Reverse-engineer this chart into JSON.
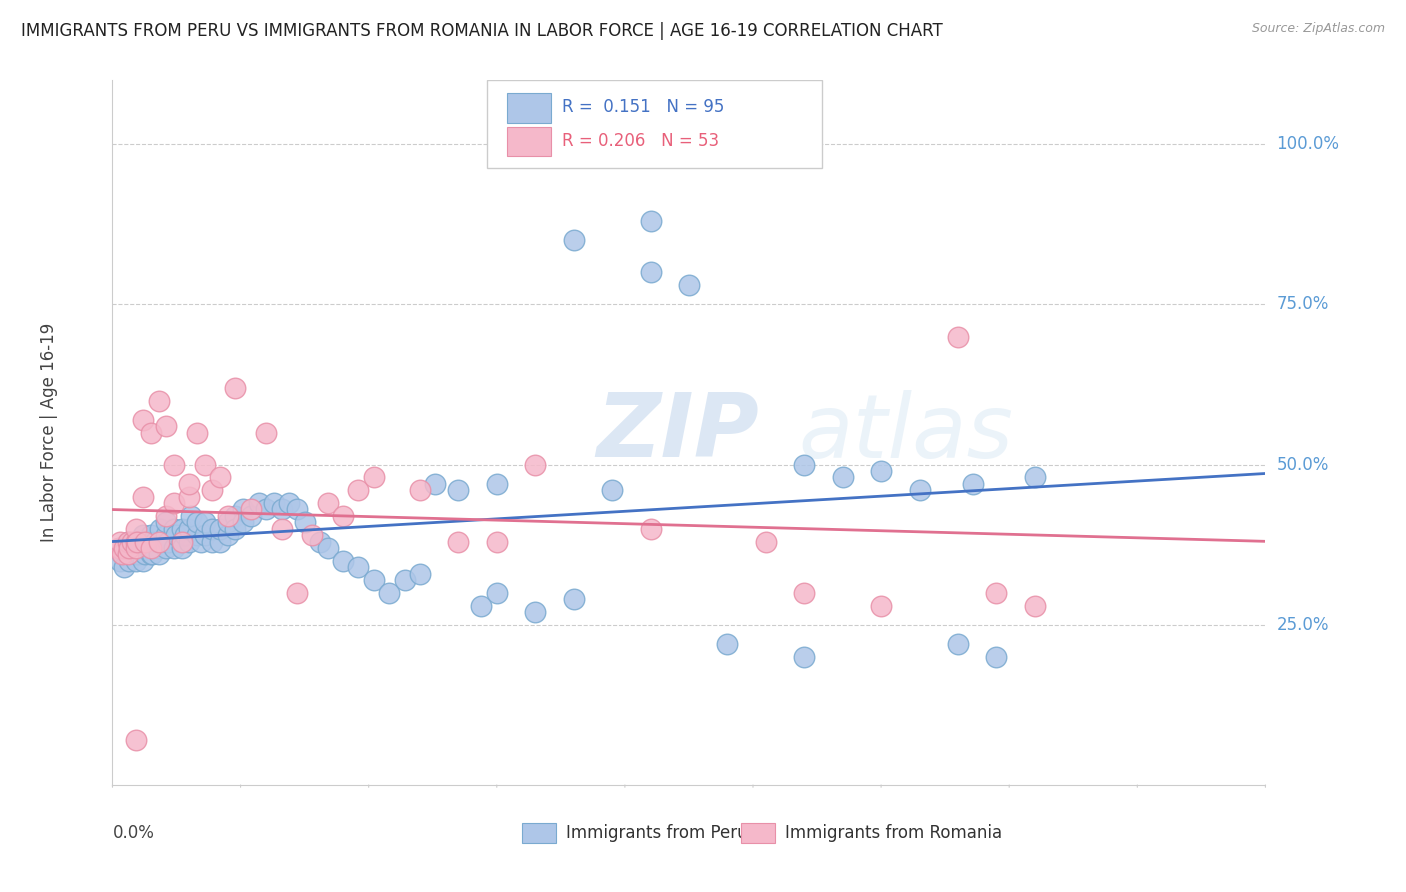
{
  "title": "IMMIGRANTS FROM PERU VS IMMIGRANTS FROM ROMANIA IN LABOR FORCE | AGE 16-19 CORRELATION CHART",
  "source": "Source: ZipAtlas.com",
  "ylabel": "In Labor Force | Age 16-19",
  "xlim": [
    0.0,
    0.15
  ],
  "ylim": [
    0.0,
    1.1
  ],
  "peru_color": "#aec6e8",
  "peru_edge_color": "#7aaad0",
  "romania_color": "#f5b8ca",
  "romania_edge_color": "#e890a8",
  "peru_line_color": "#4472c4",
  "romania_line_color": "#e07090",
  "legend_peru_label_R": "R =  0.151",
  "legend_peru_label_N": "N = 95",
  "legend_romania_label_R": "R = 0.206",
  "legend_romania_label_N": "N = 53",
  "legend_peru_bottom_label": "Immigrants from Peru",
  "legend_romania_bottom_label": "Immigrants from Romania",
  "watermark_zip": "ZIP",
  "watermark_atlas": "atlas",
  "grid_color": "#cccccc",
  "background_color": "#ffffff",
  "title_color": "#222222",
  "ytick_color": "#5b9bd5",
  "xtick_color": "#444444",
  "ylabel_color": "#444444",
  "peru_x": [
    0.0008,
    0.001,
    0.0012,
    0.0015,
    0.0018,
    0.002,
    0.002,
    0.0022,
    0.0025,
    0.003,
    0.003,
    0.003,
    0.0032,
    0.0035,
    0.004,
    0.004,
    0.004,
    0.0042,
    0.0045,
    0.005,
    0.005,
    0.005,
    0.0052,
    0.0055,
    0.006,
    0.006,
    0.006,
    0.0062,
    0.007,
    0.007,
    0.007,
    0.0072,
    0.008,
    0.008,
    0.0082,
    0.009,
    0.009,
    0.009,
    0.0095,
    0.01,
    0.01,
    0.0102,
    0.011,
    0.011,
    0.0115,
    0.012,
    0.012,
    0.013,
    0.013,
    0.014,
    0.014,
    0.015,
    0.015,
    0.016,
    0.016,
    0.017,
    0.017,
    0.018,
    0.019,
    0.02,
    0.021,
    0.022,
    0.023,
    0.024,
    0.025,
    0.027,
    0.028,
    0.03,
    0.032,
    0.034,
    0.036,
    0.038,
    0.04,
    0.042,
    0.045,
    0.048,
    0.05,
    0.055,
    0.06,
    0.065,
    0.07,
    0.075,
    0.08,
    0.05,
    0.06,
    0.07,
    0.09,
    0.09,
    0.095,
    0.1,
    0.105,
    0.11,
    0.112,
    0.115,
    0.12
  ],
  "peru_y": [
    0.37,
    0.35,
    0.36,
    0.34,
    0.37,
    0.36,
    0.38,
    0.35,
    0.37,
    0.35,
    0.36,
    0.38,
    0.37,
    0.36,
    0.35,
    0.37,
    0.39,
    0.36,
    0.38,
    0.36,
    0.37,
    0.39,
    0.36,
    0.38,
    0.37,
    0.36,
    0.38,
    0.4,
    0.37,
    0.39,
    0.41,
    0.38,
    0.4,
    0.37,
    0.39,
    0.38,
    0.4,
    0.37,
    0.39,
    0.38,
    0.4,
    0.42,
    0.39,
    0.41,
    0.38,
    0.39,
    0.41,
    0.38,
    0.4,
    0.38,
    0.4,
    0.39,
    0.41,
    0.42,
    0.4,
    0.43,
    0.41,
    0.42,
    0.44,
    0.43,
    0.44,
    0.43,
    0.44,
    0.43,
    0.41,
    0.38,
    0.37,
    0.35,
    0.34,
    0.32,
    0.3,
    0.32,
    0.33,
    0.47,
    0.46,
    0.28,
    0.3,
    0.27,
    0.29,
    0.46,
    0.8,
    0.78,
    0.22,
    0.47,
    0.85,
    0.88,
    0.5,
    0.2,
    0.48,
    0.49,
    0.46,
    0.22,
    0.47,
    0.2,
    0.48
  ],
  "romania_x": [
    0.0008,
    0.001,
    0.0012,
    0.0015,
    0.002,
    0.002,
    0.0022,
    0.0025,
    0.003,
    0.003,
    0.003,
    0.0032,
    0.004,
    0.004,
    0.0042,
    0.005,
    0.005,
    0.006,
    0.006,
    0.007,
    0.007,
    0.008,
    0.008,
    0.009,
    0.01,
    0.01,
    0.011,
    0.012,
    0.013,
    0.014,
    0.015,
    0.016,
    0.018,
    0.02,
    0.022,
    0.024,
    0.026,
    0.028,
    0.03,
    0.032,
    0.034,
    0.04,
    0.045,
    0.05,
    0.055,
    0.07,
    0.085,
    0.09,
    0.1,
    0.11,
    0.115,
    0.12,
    0.003
  ],
  "romania_y": [
    0.37,
    0.38,
    0.36,
    0.37,
    0.36,
    0.38,
    0.37,
    0.38,
    0.38,
    0.4,
    0.37,
    0.38,
    0.45,
    0.57,
    0.38,
    0.37,
    0.55,
    0.38,
    0.6,
    0.42,
    0.56,
    0.5,
    0.44,
    0.38,
    0.45,
    0.47,
    0.55,
    0.5,
    0.46,
    0.48,
    0.42,
    0.62,
    0.43,
    0.55,
    0.4,
    0.3,
    0.39,
    0.44,
    0.42,
    0.46,
    0.48,
    0.46,
    0.38,
    0.38,
    0.5,
    0.4,
    0.38,
    0.3,
    0.28,
    0.7,
    0.3,
    0.28,
    0.07
  ]
}
